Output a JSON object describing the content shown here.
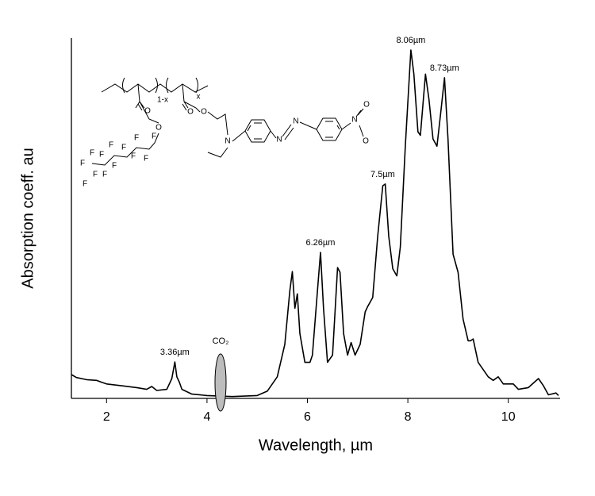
{
  "chart_data": {
    "type": "line",
    "xlabel": "Wavelength, µm",
    "ylabel": "Absorption coeff. au",
    "color": "#000000",
    "xlim": [
      1.3,
      11
    ],
    "xticks": [
      2,
      4,
      6,
      8,
      10
    ],
    "ylim": [
      0,
      1
    ],
    "x": [
      1.3,
      1.4,
      1.6,
      1.8,
      1.9,
      2.0,
      2.3,
      2.6,
      2.8,
      2.9,
      3.0,
      3.2,
      3.3,
      3.36,
      3.4,
      3.45,
      3.5,
      3.7,
      4.0,
      4.5,
      5.0,
      5.2,
      5.4,
      5.55,
      5.65,
      5.7,
      5.75,
      5.8,
      5.85,
      5.95,
      6.05,
      6.1,
      6.2,
      6.26,
      6.32,
      6.4,
      6.5,
      6.6,
      6.65,
      6.72,
      6.8,
      6.87,
      6.95,
      7.05,
      7.15,
      7.2,
      7.3,
      7.4,
      7.5,
      7.55,
      7.62,
      7.7,
      7.78,
      7.85,
      7.95,
      8.06,
      8.12,
      8.2,
      8.25,
      8.35,
      8.42,
      8.5,
      8.58,
      8.66,
      8.73,
      8.8,
      8.9,
      9.0,
      9.1,
      9.2,
      9.25,
      9.3,
      9.4,
      9.6,
      9.7,
      9.8,
      9.9,
      10.0,
      10.1,
      10.2,
      10.4,
      10.6,
      10.7,
      10.8,
      10.95,
      11.0
    ],
    "values": [
      0.066,
      0.058,
      0.052,
      0.05,
      0.045,
      0.04,
      0.035,
      0.03,
      0.025,
      0.033,
      0.022,
      0.025,
      0.055,
      0.101,
      0.06,
      0.045,
      0.025,
      0.012,
      0.008,
      0.005,
      0.008,
      0.02,
      0.06,
      0.15,
      0.3,
      0.352,
      0.25,
      0.29,
      0.18,
      0.1,
      0.1,
      0.12,
      0.3,
      0.405,
      0.25,
      0.1,
      0.12,
      0.363,
      0.35,
      0.18,
      0.12,
      0.155,
      0.12,
      0.15,
      0.24,
      0.255,
      0.28,
      0.45,
      0.59,
      0.595,
      0.45,
      0.36,
      0.34,
      0.42,
      0.7,
      0.967,
      0.9,
      0.74,
      0.73,
      0.9,
      0.83,
      0.72,
      0.7,
      0.8,
      0.89,
      0.72,
      0.4,
      0.35,
      0.22,
      0.16,
      0.16,
      0.165,
      0.1,
      0.06,
      0.05,
      0.06,
      0.04,
      0.04,
      0.04,
      0.025,
      0.03,
      0.055,
      0.035,
      0.01,
      0.015,
      0.008
    ],
    "annotations": [
      {
        "text": "3.36µm",
        "x": 3.36,
        "y": 0.101
      },
      {
        "text": "6.26µm",
        "x": 6.26,
        "y": 0.405
      },
      {
        "text": "7.5µm",
        "x": 7.5,
        "y": 0.595
      },
      {
        "text": "8.06µm",
        "x": 8.06,
        "y": 0.967
      },
      {
        "text": "8.73µm",
        "x": 8.73,
        "y": 0.89
      }
    ],
    "co2_marker": {
      "text": "CO₂",
      "x": 4.27,
      "y": 0.044
    },
    "structure_labels": [
      "1-x",
      "x",
      "O",
      "O",
      "O",
      "O",
      "N",
      "N",
      "N",
      "N",
      "O",
      "O",
      "F",
      "F",
      "F",
      "F",
      "F",
      "F",
      "F",
      "F",
      "F",
      "F",
      "F",
      "F",
      "F"
    ]
  }
}
